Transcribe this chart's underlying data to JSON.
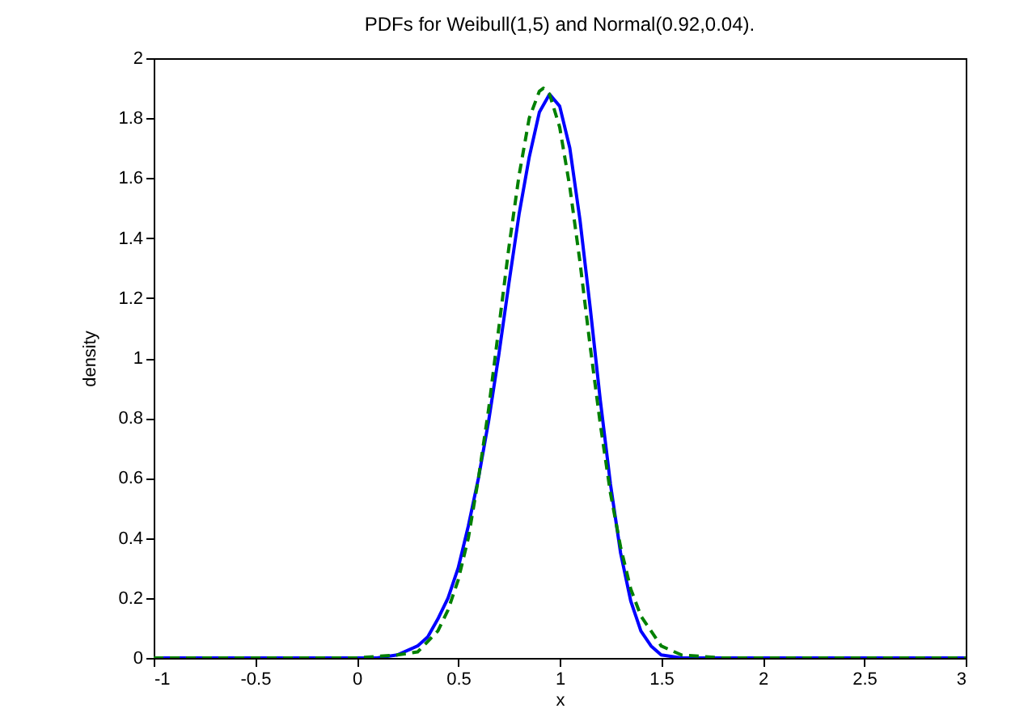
{
  "chart_data": {
    "type": "line",
    "title": "PDFs for Weibull(1,5) and Normal(0.92,0.04).",
    "xlabel": "x",
    "ylabel": "density",
    "xlim": [
      -1,
      3
    ],
    "ylim": [
      0,
      2
    ],
    "xticks": [
      -1,
      -0.5,
      0,
      0.5,
      1,
      1.5,
      2,
      2.5,
      3
    ],
    "yticks": [
      0,
      0.2,
      0.4,
      0.6,
      0.8,
      1,
      1.2,
      1.4,
      1.6,
      1.8,
      2
    ],
    "series": [
      {
        "color": "#0000ff",
        "line_style": "solid",
        "x": [
          -1,
          0,
          0.1,
          0.2,
          0.3,
          0.35,
          0.4,
          0.45,
          0.5,
          0.55,
          0.6,
          0.65,
          0.7,
          0.75,
          0.8,
          0.85,
          0.9,
          0.95,
          1,
          1.05,
          1.1,
          1.15,
          1.2,
          1.25,
          1.3,
          1.35,
          1.4,
          1.45,
          1.5,
          1.6,
          1.8,
          3
        ],
        "values": [
          0,
          0,
          0,
          0.01,
          0.04,
          0.07,
          0.13,
          0.2,
          0.3,
          0.44,
          0.6,
          0.79,
          1.01,
          1.25,
          1.48,
          1.67,
          1.82,
          1.88,
          1.84,
          1.7,
          1.46,
          1.17,
          0.86,
          0.58,
          0.35,
          0.19,
          0.09,
          0.04,
          0.01,
          0,
          0,
          0
        ]
      },
      {
        "color": "#008000",
        "line_style": "dashed",
        "x": [
          -1,
          0,
          0.2,
          0.3,
          0.4,
          0.45,
          0.5,
          0.55,
          0.6,
          0.65,
          0.7,
          0.75,
          0.8,
          0.85,
          0.9,
          0.92,
          0.95,
          1,
          1.05,
          1.1,
          1.15,
          1.2,
          1.25,
          1.3,
          1.35,
          1.4,
          1.5,
          1.6,
          1.8,
          3
        ],
        "values": [
          0,
          0,
          0.01,
          0.02,
          0.09,
          0.16,
          0.26,
          0.4,
          0.6,
          0.83,
          1.1,
          1.37,
          1.61,
          1.8,
          1.89,
          1.9,
          1.88,
          1.77,
          1.57,
          1.32,
          1.04,
          0.78,
          0.55,
          0.37,
          0.23,
          0.14,
          0.04,
          0.01,
          0,
          0
        ]
      }
    ]
  }
}
